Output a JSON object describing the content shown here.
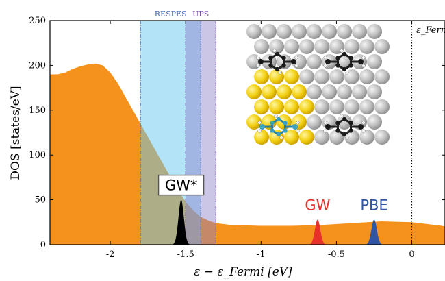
{
  "chart_data": {
    "type": "area",
    "xlabel": "ε − ε_Fermi [eV]",
    "ylabel": "DOS [states/eV]",
    "xlim": [
      -2.4,
      0.22
    ],
    "ylim": [
      0,
      250
    ],
    "x_ticks": [
      -2,
      -1.5,
      -1,
      -0.5,
      0
    ],
    "y_ticks": [
      0,
      50,
      100,
      150,
      200,
      250
    ],
    "x_tick_labels": [
      "-2",
      "-1.5",
      "-1",
      "-0.5",
      "0"
    ],
    "y_tick_labels": [
      "0",
      "50",
      "100",
      "150",
      "200",
      "250"
    ],
    "grid": false,
    "series": [
      {
        "kind": "area",
        "color": "#f5921e",
        "x": [
          -2.4,
          -2.35,
          -2.3,
          -2.25,
          -2.2,
          -2.15,
          -2.1,
          -2.05,
          -2.0,
          -1.95,
          -1.9,
          -1.85,
          -1.8,
          -1.75,
          -1.7,
          -1.65,
          -1.6,
          -1.55,
          -1.5,
          -1.45,
          -1.4,
          -1.35,
          -1.3,
          -1.2,
          -1.0,
          -0.8,
          -0.6,
          -0.4,
          -0.2,
          0.0,
          0.1,
          0.2,
          0.22
        ],
        "y": [
          190,
          190,
          192,
          196,
          199,
          201,
          202,
          200,
          192,
          180,
          165,
          150,
          135,
          120,
          105,
          90,
          75,
          60,
          48,
          38,
          31,
          27,
          24,
          22,
          21,
          21,
          22,
          24,
          26,
          25,
          23,
          21,
          20
        ]
      }
    ],
    "peaks": [
      {
        "label": "GW*",
        "center": -1.53,
        "height": 50,
        "color": "#000000",
        "label_color": "#000000",
        "boxed": true
      },
      {
        "label": "GW",
        "center": -0.625,
        "height": 28,
        "color": "#e8312a",
        "label_color": "#e8312a",
        "boxed": false
      },
      {
        "label": "PBE",
        "center": -0.25,
        "height": 28,
        "color": "#2f55a4",
        "label_color": "#2f55a4",
        "boxed": false
      }
    ],
    "bands": [
      {
        "label": "RESPES",
        "range": [
          -1.8,
          -1.4
        ],
        "color": "#66c8f0",
        "label_color": "#3f6ab8"
      },
      {
        "label": "UPS",
        "range": [
          -1.5,
          -1.3
        ],
        "color": "#8b7fc8",
        "label_color": "#7a4ea8"
      }
    ],
    "vline": {
      "x": 0,
      "label": "ε_Ferm"
    }
  },
  "colors": {
    "orange": "#f5921e",
    "respes": "#66c8f0",
    "ups": "#8b7fc8",
    "gw": "#e8312a",
    "pbe": "#2f55a4"
  }
}
